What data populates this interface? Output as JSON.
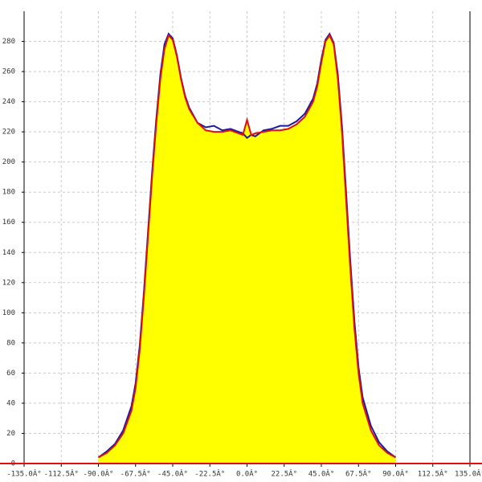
{
  "chart_data": {
    "type": "area",
    "x": [
      -90,
      -85,
      -80,
      -75,
      -70,
      -67.5,
      -65,
      -62.5,
      -60,
      -57.5,
      -55,
      -52.5,
      -50,
      -47.5,
      -45,
      -42.5,
      -40,
      -37.5,
      -35,
      -30,
      -25,
      -20,
      -15,
      -10,
      -5,
      -2.5,
      0,
      2.5,
      5,
      10,
      15,
      20,
      25,
      30,
      35,
      40,
      42.5,
      45,
      47.5,
      50,
      52.5,
      55,
      57.5,
      60,
      62.5,
      65,
      67.5,
      70,
      75,
      80,
      85,
      90
    ],
    "series": [
      {
        "color": "#1a1aa0",
        "values": [
          4,
          8,
          13,
          22,
          38,
          53,
          78,
          113,
          153,
          193,
          228,
          258,
          278,
          285,
          282,
          271,
          256,
          244,
          236,
          226,
          223,
          224,
          221,
          222,
          220,
          219,
          216,
          218,
          217,
          221,
          222,
          224,
          224,
          227,
          232,
          242,
          252,
          268,
          281,
          285,
          279,
          258,
          224,
          180,
          135,
          95,
          64,
          44,
          25,
          14,
          8,
          4
        ]
      },
      {
        "color": "#e01010",
        "fill": "#ffff00",
        "values": [
          4,
          7,
          12,
          20,
          35,
          50,
          75,
          110,
          150,
          190,
          225,
          255,
          275,
          284,
          281,
          270,
          255,
          243,
          235,
          226,
          221,
          220,
          220,
          221,
          219,
          218,
          228,
          218,
          219,
          220,
          221,
          221,
          222,
          225,
          230,
          240,
          250,
          266,
          280,
          284,
          278,
          255,
          220,
          175,
          130,
          90,
          60,
          40,
          22,
          12,
          7,
          4
        ]
      }
    ],
    "xlim": [
      -135,
      135
    ],
    "xticks": [
      {
        "value": -135,
        "label": "-135.0Â°"
      },
      {
        "value": -112.5,
        "label": "-112.5Â°"
      },
      {
        "value": -90,
        "label": "-90.0Â°"
      },
      {
        "value": -67.5,
        "label": "-67.5Â°"
      },
      {
        "value": -45,
        "label": "-45.0Â°"
      },
      {
        "value": -22.5,
        "label": "-22.5Â°"
      },
      {
        "value": 0,
        "label": "0.0Â°"
      },
      {
        "value": 22.5,
        "label": "22.5Â°"
      },
      {
        "value": 45,
        "label": "45.0Â°"
      },
      {
        "value": 67.5,
        "label": "67.5Â°"
      },
      {
        "value": 90,
        "label": "90.0Â°"
      },
      {
        "value": 112.5,
        "label": "112.5Â°"
      },
      {
        "value": 135,
        "label": "135.0Â°"
      }
    ],
    "ylim": [
      0,
      300
    ],
    "yticks": [
      0,
      20,
      40,
      60,
      80,
      100,
      120,
      140,
      160,
      180,
      200,
      220,
      240,
      260,
      280
    ],
    "grid": true
  }
}
